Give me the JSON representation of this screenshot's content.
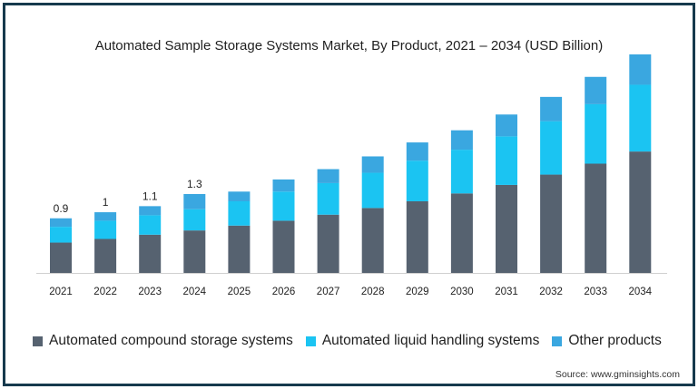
{
  "chart_data": {
    "type": "bar",
    "stacked": true,
    "title": "Automated Sample Storage Systems Market, By Product, 2021 – 2034 (USD Billion)",
    "xlabel": "",
    "ylabel": "",
    "grid": false,
    "legend_position": "bottom",
    "categories": [
      "2021",
      "2022",
      "2023",
      "2024",
      "2025",
      "2026",
      "2027",
      "2028",
      "2029",
      "2030",
      "2031",
      "2032",
      "2033",
      "2034"
    ],
    "series": [
      {
        "name": "Automated compound storage systems",
        "color": "#566270",
        "values": [
          0.5,
          0.56,
          0.63,
          0.7,
          0.78,
          0.86,
          0.96,
          1.07,
          1.18,
          1.31,
          1.45,
          1.62,
          1.8,
          2.0
        ]
      },
      {
        "name": "Automated liquid handling systems",
        "color": "#1bc4f2",
        "values": [
          0.26,
          0.3,
          0.32,
          0.35,
          0.4,
          0.48,
          0.52,
          0.58,
          0.67,
          0.72,
          0.8,
          0.88,
          0.98,
          1.1
        ]
      },
      {
        "name": "Other products",
        "color": "#3aa7e0",
        "values": [
          0.14,
          0.14,
          0.15,
          0.25,
          0.16,
          0.2,
          0.23,
          0.27,
          0.3,
          0.32,
          0.36,
          0.4,
          0.45,
          0.5
        ]
      }
    ],
    "data_labels": [
      {
        "category": "2021",
        "text": "0.9"
      },
      {
        "category": "2022",
        "text": "1"
      },
      {
        "category": "2023",
        "text": "1.1"
      },
      {
        "category": "2024",
        "text": "1.3"
      }
    ],
    "ylim": [
      0,
      3.6
    ]
  },
  "source": "Source: www.gminsights.com"
}
